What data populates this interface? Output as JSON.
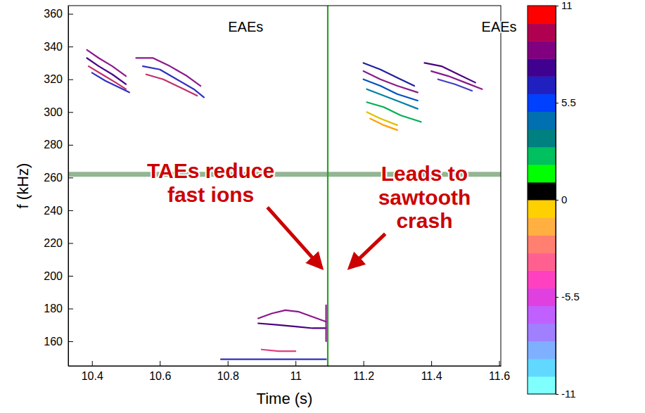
{
  "chart_data": {
    "type": "line",
    "xlabel": "Time (s)",
    "ylabel": "f (kHz)",
    "xlim": [
      10.33,
      11.605
    ],
    "ylim": [
      145,
      365
    ],
    "xticks": [
      10.4,
      10.6,
      10.8,
      11,
      11.2,
      11.4,
      11.6
    ],
    "yticks": [
      160,
      180,
      200,
      220,
      240,
      260,
      280,
      300,
      320,
      340,
      360
    ],
    "series": [
      {
        "color": "#3a7a3a",
        "line_style": "band",
        "x": [
          10.33,
          11.605
        ],
        "values": [
          262,
          262
        ]
      },
      {
        "color": "#2ca02c",
        "line_style": "solid",
        "x": [
          11.095,
          11.095
        ],
        "values": [
          145,
          365
        ]
      },
      {
        "color": "#8b1a8b",
        "line_style": "solid",
        "x": [
          10.385,
          10.42,
          10.46,
          10.5
        ],
        "values": [
          338,
          333,
          328,
          322
        ]
      },
      {
        "color": "#4b0082",
        "line_style": "solid",
        "x": [
          10.385,
          10.42,
          10.46,
          10.5
        ],
        "values": [
          333,
          328,
          323,
          317
        ]
      },
      {
        "color": "#c0306a",
        "line_style": "solid",
        "x": [
          10.39,
          10.43,
          10.47,
          10.5
        ],
        "values": [
          328,
          323,
          318,
          314
        ]
      },
      {
        "color": "#3030c0",
        "line_style": "solid",
        "x": [
          10.4,
          10.44,
          10.48,
          10.51
        ],
        "values": [
          324,
          319,
          315,
          312
        ]
      },
      {
        "color": "#8b1a8b",
        "line_style": "solid",
        "x": [
          10.53,
          10.58,
          10.63,
          10.68,
          10.72
        ],
        "values": [
          333,
          333,
          328,
          322,
          316
        ]
      },
      {
        "color": "#3030c0",
        "line_style": "solid",
        "x": [
          10.55,
          10.6,
          10.65,
          10.7,
          10.73
        ],
        "values": [
          328,
          326,
          320,
          314,
          309
        ]
      },
      {
        "color": "#c0306a",
        "line_style": "solid",
        "x": [
          10.56,
          10.61,
          10.66,
          10.71
        ],
        "values": [
          323,
          320,
          315,
          310
        ]
      },
      {
        "color": "#2020a0",
        "line_style": "solid",
        "x": [
          11.2,
          11.25,
          11.3,
          11.35
        ],
        "values": [
          330,
          326,
          321,
          316
        ]
      },
      {
        "color": "#8b1a8b",
        "line_style": "solid",
        "x": [
          11.2,
          11.25,
          11.3,
          11.36
        ],
        "values": [
          325,
          320,
          316,
          312
        ]
      },
      {
        "color": "#0050c0",
        "line_style": "solid",
        "x": [
          11.2,
          11.25,
          11.3,
          11.36
        ],
        "values": [
          320,
          316,
          311,
          307
        ]
      },
      {
        "color": "#0080a0",
        "line_style": "solid",
        "x": [
          11.21,
          11.26,
          11.31,
          11.36
        ],
        "values": [
          314,
          310,
          306,
          302
        ]
      },
      {
        "color": "#00b050",
        "line_style": "solid",
        "x": [
          11.21,
          11.26,
          11.31,
          11.37
        ],
        "values": [
          306,
          303,
          298,
          294
        ]
      },
      {
        "color": "#e0c000",
        "line_style": "solid",
        "x": [
          11.21,
          11.25,
          11.3
        ],
        "values": [
          300,
          296,
          292
        ]
      },
      {
        "color": "#ffa000",
        "line_style": "solid",
        "x": [
          11.22,
          11.26,
          11.3
        ],
        "values": [
          296,
          292,
          289
        ]
      },
      {
        "color": "#4b0082",
        "line_style": "solid",
        "x": [
          11.38,
          11.43,
          11.48,
          11.53
        ],
        "values": [
          330,
          328,
          323,
          318
        ]
      },
      {
        "color": "#8b1a8b",
        "line_style": "solid",
        "x": [
          11.4,
          11.45,
          11.5,
          11.55
        ],
        "values": [
          325,
          322,
          318,
          314
        ]
      },
      {
        "color": "#4040c0",
        "line_style": "solid",
        "x": [
          11.42,
          11.47,
          11.52
        ],
        "values": [
          320,
          317,
          313
        ]
      },
      {
        "color": "#4b0082",
        "line_style": "solid",
        "x": [
          10.89,
          10.95,
          11.0,
          11.05,
          11.09
        ],
        "values": [
          171,
          170,
          169,
          168,
          168
        ]
      },
      {
        "color": "#8b1a8b",
        "line_style": "solid",
        "x": [
          10.89,
          10.93,
          10.97,
          11.01,
          11.05,
          11.09
        ],
        "values": [
          174,
          177,
          179,
          178,
          175,
          172
        ]
      },
      {
        "color": "#e04080",
        "line_style": "solid",
        "x": [
          10.9,
          10.95,
          11.0
        ],
        "values": [
          155,
          154,
          154
        ]
      },
      {
        "color": "#3030c0",
        "line_style": "solid",
        "x": [
          10.78,
          10.85,
          10.95,
          11.05,
          11.09
        ],
        "values": [
          149,
          149,
          149,
          149,
          149
        ]
      },
      {
        "color": "#8b1a8b",
        "line_style": "solid",
        "x": [
          11.09,
          11.09
        ],
        "values": [
          160,
          182
        ]
      }
    ],
    "annotations": [
      {
        "text": "EAEs",
        "x": 10.853,
        "y": 352,
        "color": "#000000"
      },
      {
        "text": "EAEs",
        "x": 11.6,
        "y": 352,
        "color": "#000000"
      },
      {
        "text": "TAEs reduce\nfast ions",
        "x": 10.75,
        "y": 257,
        "color": "#cc0000",
        "target": [
          11.076,
          205
        ]
      },
      {
        "text": "Leads to\nsawtooth\ncrash",
        "x": 11.38,
        "y": 248,
        "color": "#cc0000",
        "target": [
          11.16,
          205
        ]
      }
    ],
    "colorbar": {
      "range": [
        -11,
        11
      ],
      "ticks": [
        -11,
        -5.5,
        0,
        5.5,
        11
      ],
      "colors": [
        "#80ffff",
        "#60d8ff",
        "#7fb0ff",
        "#a080ff",
        "#c060ff",
        "#e040e0",
        "#ff40c0",
        "#ff6090",
        "#ff8070",
        "#ffb040",
        "#ffd000",
        "#000000",
        "#00ff00",
        "#00c060",
        "#008080",
        "#0070b0",
        "#0040ff",
        "#2020c0",
        "#400090",
        "#800080",
        "#b00050",
        "#ff0000"
      ]
    }
  }
}
